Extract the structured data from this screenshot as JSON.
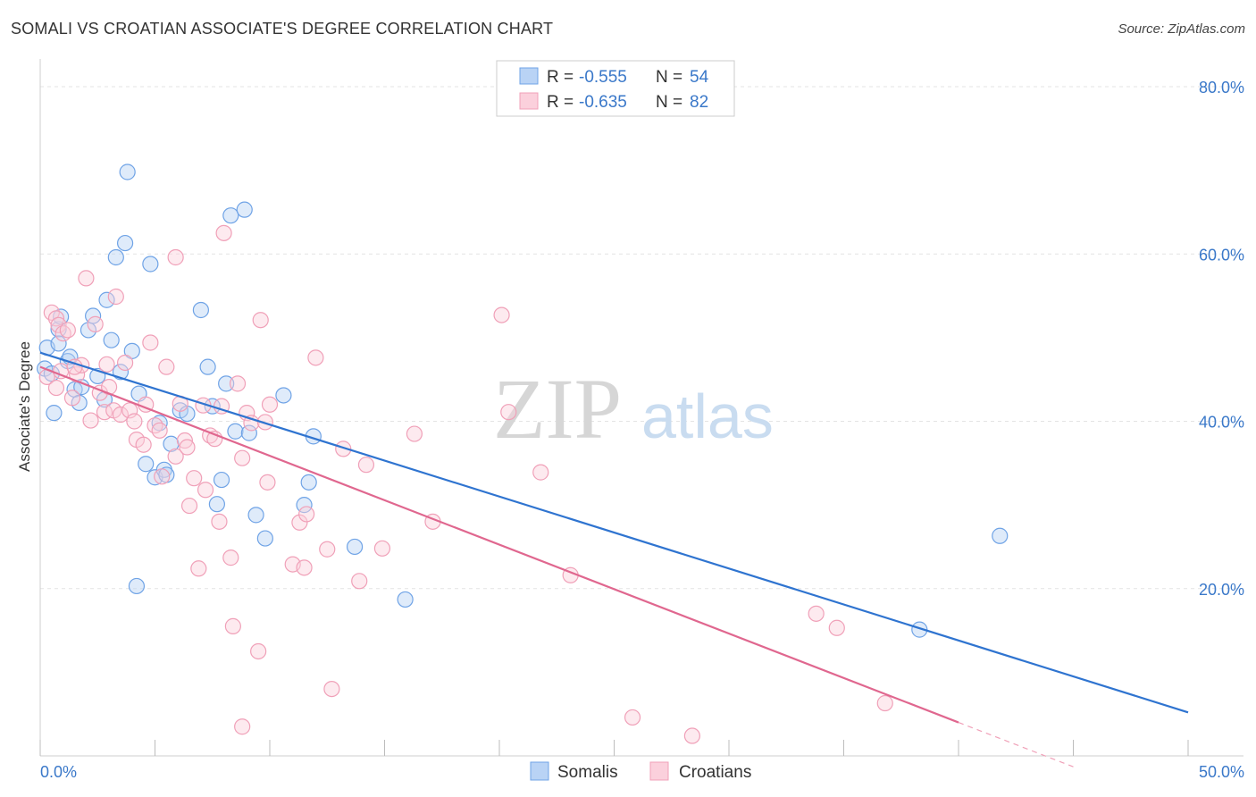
{
  "title": "SOMALI VS CROATIAN ASSOCIATE'S DEGREE CORRELATION CHART",
  "source": "Source: ZipAtlas.com",
  "watermark": {
    "zip": "ZIP",
    "atlas": "atlas"
  },
  "colors": {
    "somali": "#6fa3e6",
    "somali_line": "#2f74d0",
    "croatian": "#f0a0b8",
    "croatian_line": "#e0678f",
    "grid": "#e3e3e3",
    "tick_text": "#3a78c9"
  },
  "legend": {
    "somalis": {
      "r_label": "R =",
      "r_value": "-0.555",
      "n_label": "N =",
      "n_value": "54"
    },
    "croatians": {
      "r_label": "R =",
      "r_value": "-0.635",
      "n_label": "N =",
      "n_value": "82"
    }
  },
  "bottom_legend": [
    "Somalis",
    "Croatians"
  ],
  "chart_data": {
    "type": "scatter",
    "ylabel": "Associate's Degree",
    "xlabel": "",
    "xlim": [
      0,
      50
    ],
    "ylim": [
      0,
      80
    ],
    "x_tick_labels": [
      "0.0%",
      "50.0%"
    ],
    "y_ticks": [
      20,
      40,
      60,
      80
    ],
    "y_tick_labels": [
      "20.0%",
      "40.0%",
      "60.0%",
      "80.0%"
    ],
    "grid": true,
    "series": [
      {
        "name": "Somalis",
        "trend": [
          [
            0,
            48.2
          ],
          [
            50,
            5.2
          ]
        ],
        "points": [
          [
            0.2,
            46.3
          ],
          [
            0.3,
            48.8
          ],
          [
            0.5,
            45.7
          ],
          [
            0.8,
            51.0
          ],
          [
            0.8,
            49.3
          ],
          [
            0.9,
            52.5
          ],
          [
            1.2,
            47.2
          ],
          [
            1.3,
            47.7
          ],
          [
            1.5,
            43.8
          ],
          [
            1.7,
            42.2
          ],
          [
            1.8,
            44.1
          ],
          [
            2.1,
            50.9
          ],
          [
            2.3,
            52.6
          ],
          [
            2.5,
            45.4
          ],
          [
            2.8,
            42.6
          ],
          [
            2.9,
            54.5
          ],
          [
            3.1,
            49.7
          ],
          [
            3.5,
            45.9
          ],
          [
            3.7,
            61.3
          ],
          [
            3.8,
            69.8
          ],
          [
            4.0,
            48.4
          ],
          [
            4.3,
            43.3
          ],
          [
            4.6,
            34.9
          ],
          [
            4.8,
            58.8
          ],
          [
            5.0,
            33.3
          ],
          [
            5.2,
            39.8
          ],
          [
            5.4,
            34.2
          ],
          [
            5.5,
            33.6
          ],
          [
            5.7,
            37.3
          ],
          [
            6.1,
            41.3
          ],
          [
            6.4,
            40.9
          ],
          [
            7.0,
            53.3
          ],
          [
            7.3,
            46.5
          ],
          [
            7.5,
            41.8
          ],
          [
            7.7,
            30.1
          ],
          [
            7.9,
            33.0
          ],
          [
            8.1,
            44.5
          ],
          [
            8.3,
            64.6
          ],
          [
            8.5,
            38.8
          ],
          [
            8.9,
            65.3
          ],
          [
            9.1,
            38.6
          ],
          [
            9.4,
            28.8
          ],
          [
            9.8,
            26.0
          ],
          [
            10.6,
            43.1
          ],
          [
            11.5,
            30.0
          ],
          [
            11.7,
            32.7
          ],
          [
            11.9,
            38.2
          ],
          [
            13.7,
            25.0
          ],
          [
            15.9,
            18.7
          ],
          [
            3.3,
            59.6
          ],
          [
            4.2,
            20.3
          ],
          [
            38.3,
            15.1
          ],
          [
            41.8,
            26.3
          ],
          [
            0.6,
            41.0
          ]
        ]
      },
      {
        "name": "Croatians",
        "trend": [
          [
            0,
            46.5
          ],
          [
            40,
            4.0
          ]
        ],
        "trend_dashed": [
          [
            40,
            4.0
          ],
          [
            45,
            -1.3
          ]
        ],
        "points": [
          [
            0.3,
            45.3
          ],
          [
            0.5,
            53.0
          ],
          [
            0.7,
            52.3
          ],
          [
            0.8,
            51.5
          ],
          [
            1.0,
            50.5
          ],
          [
            1.2,
            50.9
          ],
          [
            1.4,
            42.8
          ],
          [
            1.6,
            45.6
          ],
          [
            1.8,
            46.7
          ],
          [
            2.0,
            57.1
          ],
          [
            2.2,
            40.1
          ],
          [
            2.4,
            51.6
          ],
          [
            2.6,
            43.4
          ],
          [
            2.8,
            41.1
          ],
          [
            3.0,
            44.1
          ],
          [
            3.2,
            41.3
          ],
          [
            3.3,
            54.9
          ],
          [
            3.5,
            40.8
          ],
          [
            3.7,
            47.0
          ],
          [
            3.9,
            41.3
          ],
          [
            4.1,
            40.0
          ],
          [
            4.2,
            37.8
          ],
          [
            4.5,
            37.2
          ],
          [
            4.6,
            42.0
          ],
          [
            4.8,
            49.4
          ],
          [
            5.0,
            39.5
          ],
          [
            5.2,
            38.9
          ],
          [
            5.3,
            33.4
          ],
          [
            5.5,
            46.5
          ],
          [
            5.9,
            35.8
          ],
          [
            5.9,
            59.6
          ],
          [
            6.1,
            42.1
          ],
          [
            6.3,
            37.7
          ],
          [
            6.4,
            36.9
          ],
          [
            6.5,
            29.9
          ],
          [
            6.7,
            33.2
          ],
          [
            6.9,
            22.4
          ],
          [
            7.1,
            41.9
          ],
          [
            7.2,
            31.8
          ],
          [
            7.4,
            38.3
          ],
          [
            7.6,
            37.9
          ],
          [
            7.8,
            28.0
          ],
          [
            7.9,
            41.8
          ],
          [
            8.0,
            62.5
          ],
          [
            8.3,
            23.7
          ],
          [
            8.4,
            15.5
          ],
          [
            8.6,
            44.5
          ],
          [
            8.8,
            35.6
          ],
          [
            8.8,
            3.5
          ],
          [
            9.0,
            41.0
          ],
          [
            9.2,
            39.8
          ],
          [
            9.5,
            12.5
          ],
          [
            9.6,
            52.1
          ],
          [
            9.8,
            39.9
          ],
          [
            9.9,
            32.7
          ],
          [
            10.0,
            42.0
          ],
          [
            11.0,
            22.9
          ],
          [
            11.3,
            27.9
          ],
          [
            11.5,
            22.5
          ],
          [
            11.6,
            28.9
          ],
          [
            12.0,
            47.6
          ],
          [
            12.5,
            24.7
          ],
          [
            12.7,
            8.0
          ],
          [
            13.2,
            36.7
          ],
          [
            13.9,
            20.9
          ],
          [
            14.2,
            34.8
          ],
          [
            14.9,
            24.8
          ],
          [
            16.3,
            38.5
          ],
          [
            17.1,
            28.0
          ],
          [
            20.1,
            52.7
          ],
          [
            20.4,
            41.1
          ],
          [
            21.8,
            33.9
          ],
          [
            23.1,
            21.6
          ],
          [
            25.8,
            4.6
          ],
          [
            28.4,
            2.4
          ],
          [
            33.8,
            17.0
          ],
          [
            34.7,
            15.3
          ],
          [
            36.8,
            6.3
          ],
          [
            0.9,
            46.0
          ],
          [
            2.9,
            46.8
          ],
          [
            1.5,
            46.5
          ],
          [
            0.7,
            44.0
          ]
        ]
      }
    ]
  }
}
